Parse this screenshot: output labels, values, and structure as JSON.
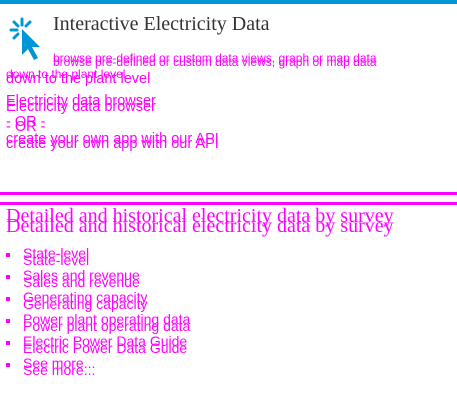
{
  "header": {
    "title": "Interactive Electricity Data",
    "description_a": "browse pre-defined or custom data views, graph or map data",
    "description_b": "browse pre-defined or custom data views, graph or map data",
    "description_c": "down to the plant level",
    "description_d": "down to the plant level"
  },
  "links": {
    "browser_label": "Electricity data browser",
    "or_label": "- OR -",
    "api_label": "create your own app with our API"
  },
  "survey_section": {
    "title": "Detailed and historical electricity data by survey",
    "items": [
      "State-level",
      "Sales and revenue",
      "Generating capacity",
      "Power plant operating data",
      "Electric Power Data Guide",
      "See more..."
    ]
  },
  "colors": {
    "accent_bar": "#0096d6",
    "link": "#ff00ff",
    "title": "#333333"
  }
}
